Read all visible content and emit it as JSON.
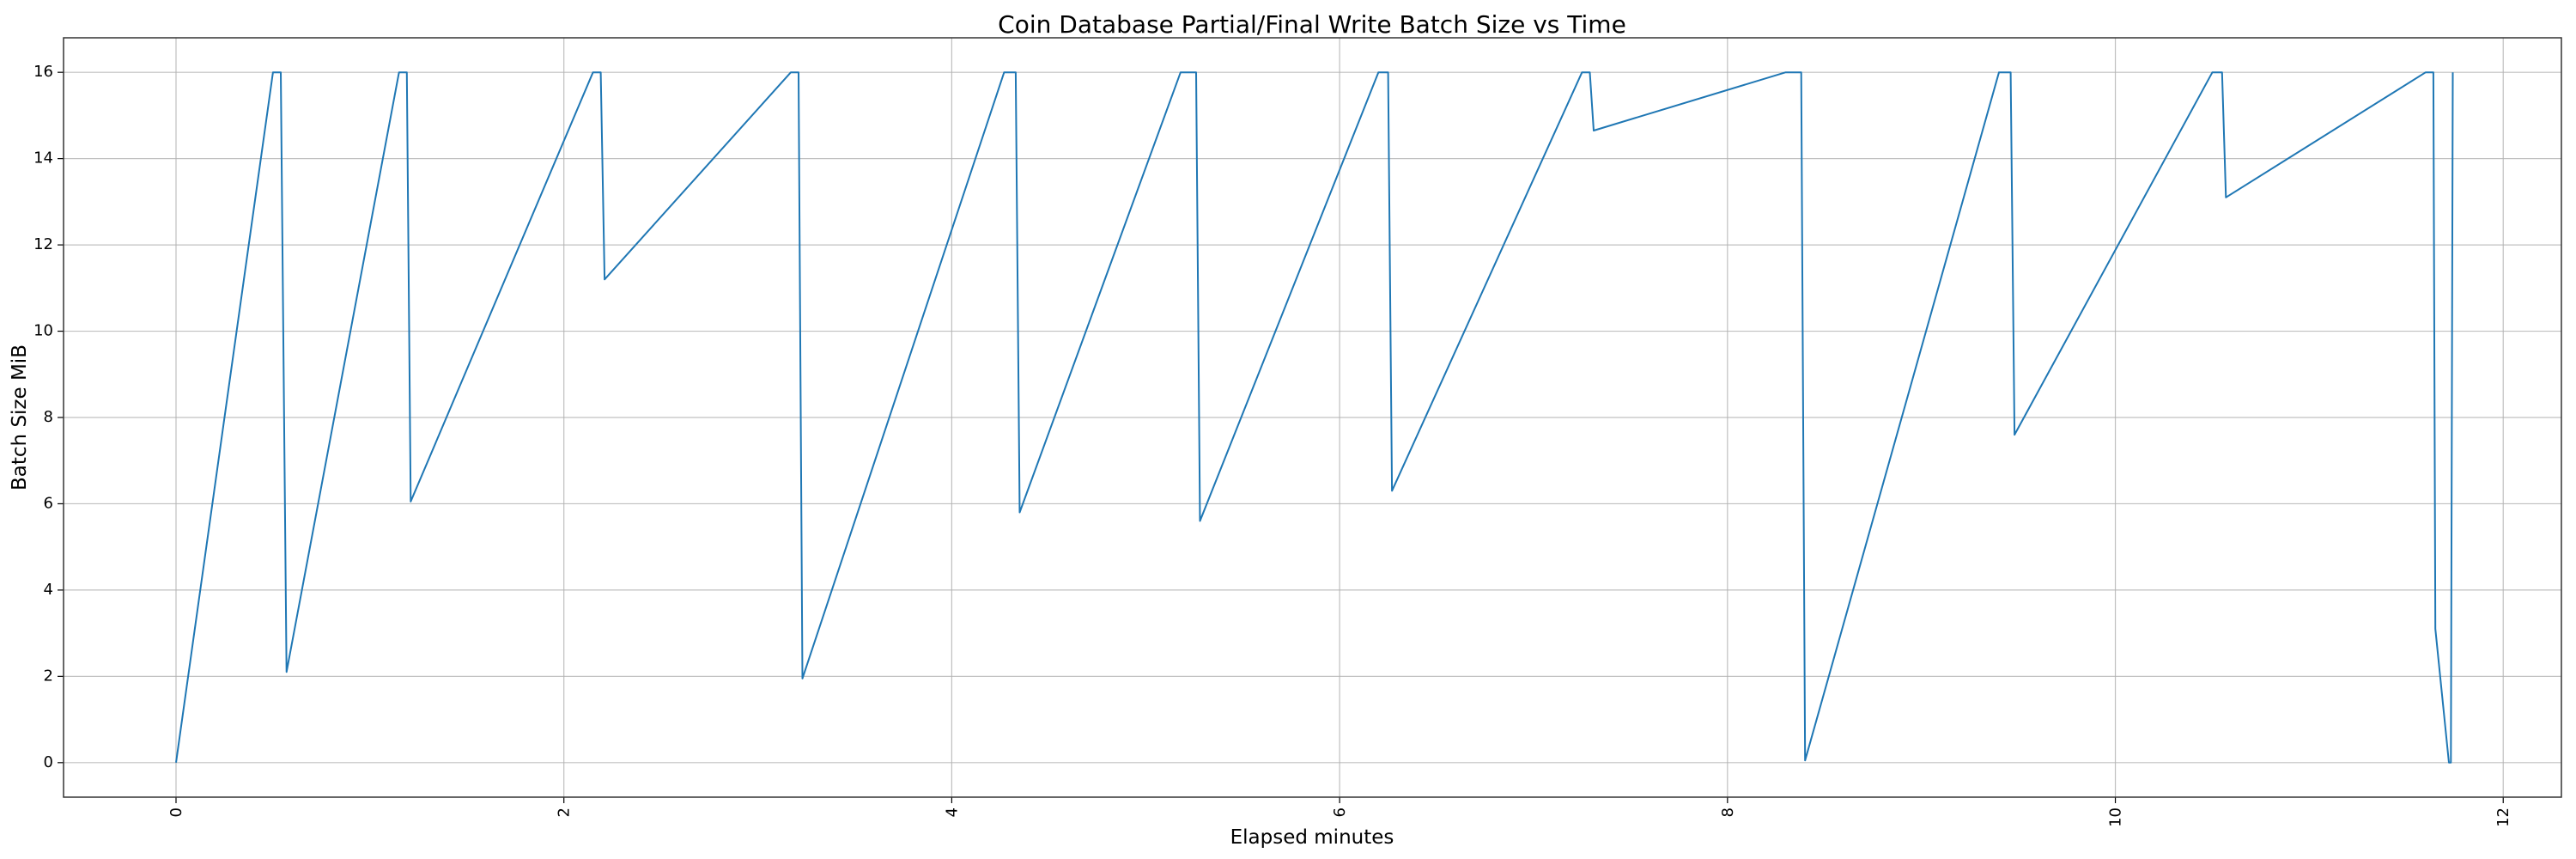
{
  "chart_data": {
    "type": "line",
    "title": "Coin Database Partial/Final Write Batch Size vs Time",
    "xlabel": "Elapsed minutes",
    "ylabel": "Batch Size MiB",
    "xlim": [
      -0.58,
      12.3
    ],
    "ylim": [
      -0.8,
      16.8
    ],
    "xticks": [
      0,
      2,
      4,
      6,
      8,
      10,
      12
    ],
    "yticks": [
      0,
      2,
      4,
      6,
      8,
      10,
      12,
      14,
      16
    ],
    "grid": true,
    "line_color": "#1f77b4",
    "series": [
      {
        "x": [
          0.0,
          0.5,
          0.54,
          0.57,
          1.15,
          1.19,
          1.21,
          2.15,
          2.19,
          2.21,
          3.17,
          3.21,
          3.23,
          4.27,
          4.33,
          4.35,
          5.18,
          5.26,
          5.28,
          6.2,
          6.25,
          6.27,
          7.25,
          7.29,
          7.31,
          8.3,
          8.38,
          8.4,
          9.4,
          9.46,
          9.48,
          10.5,
          10.55,
          10.57,
          11.6,
          11.64,
          11.65,
          11.72,
          11.73,
          11.74
        ],
        "y": [
          0.0,
          16.0,
          16.0,
          2.1,
          16.0,
          16.0,
          6.05,
          16.0,
          16.0,
          11.2,
          16.0,
          16.0,
          1.95,
          16.0,
          16.0,
          5.8,
          16.0,
          16.0,
          5.6,
          16.0,
          16.0,
          6.3,
          16.0,
          16.0,
          14.65,
          16.0,
          16.0,
          0.05,
          16.0,
          16.0,
          7.6,
          16.0,
          16.0,
          13.1,
          16.0,
          16.0,
          3.1,
          0.0,
          0.0,
          16.0
        ]
      }
    ]
  }
}
